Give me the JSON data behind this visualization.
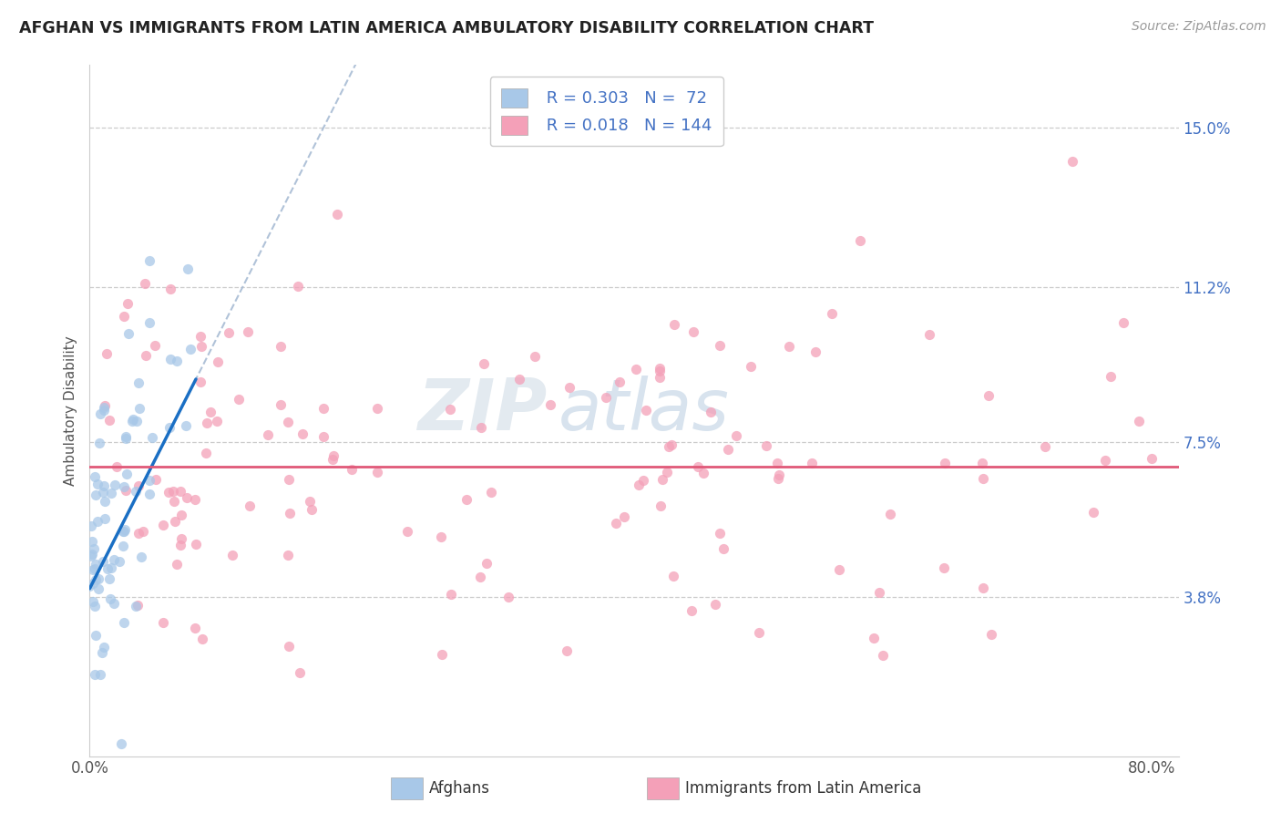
{
  "title": "AFGHAN VS IMMIGRANTS FROM LATIN AMERICA AMBULATORY DISABILITY CORRELATION CHART",
  "source": "Source: ZipAtlas.com",
  "ylabel": "Ambulatory Disability",
  "ytick_vals": [
    0.038,
    0.075,
    0.112,
    0.15
  ],
  "ytick_labels": [
    "3.8%",
    "7.5%",
    "11.2%",
    "15.0%"
  ],
  "xlim": [
    0.0,
    0.82
  ],
  "ylim": [
    0.0,
    0.165
  ],
  "color_blue": "#a8c8e8",
  "color_pink": "#f4a0b8",
  "color_blue_line": "#1a6fc4",
  "color_pink_line": "#e05878",
  "color_dash": "#a8bcd4",
  "blue_r": "0.303",
  "blue_n": "72",
  "pink_r": "0.018",
  "pink_n": "144",
  "watermark_zip": "ZIP",
  "watermark_atlas": "atlas"
}
